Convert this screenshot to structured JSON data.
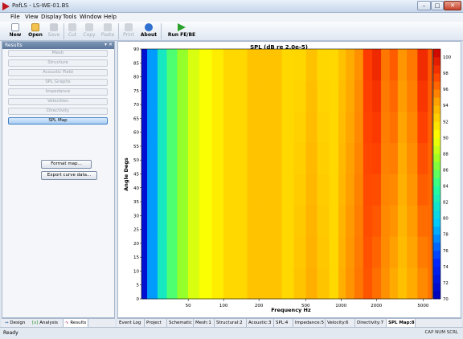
{
  "window": {
    "title": "PafLS - LS-WE-01.BS"
  },
  "menu": [
    "File",
    "View",
    "Display",
    "Tools",
    "Window",
    "Help"
  ],
  "toolbar": [
    {
      "label": "New",
      "icon": "new-file-icon",
      "enabled": true
    },
    {
      "label": "Open",
      "icon": "open-folder-icon",
      "enabled": true
    },
    {
      "label": "Save",
      "icon": "save-icon",
      "enabled": false
    },
    {
      "label": "Cut",
      "icon": "cut-icon",
      "enabled": false
    },
    {
      "label": "Copy",
      "icon": "copy-icon",
      "enabled": false
    },
    {
      "label": "Paste",
      "icon": "paste-icon",
      "enabled": false
    },
    {
      "label": "Print",
      "icon": "print-icon",
      "enabled": false
    },
    {
      "label": "About",
      "icon": "about-icon",
      "enabled": true
    },
    {
      "label": "Run FE/BE",
      "icon": "run-icon",
      "enabled": true
    }
  ],
  "panel": {
    "title": "Results",
    "controls": "▾ ✕",
    "nav": [
      "Mesh",
      "Structure",
      "Acoustic Field",
      "SPL Graphs",
      "Impedance",
      "Velocities",
      "Directivity",
      "SPL Map"
    ],
    "active": "SPL Map",
    "format_label": "Format map...",
    "export_label": "Export curve data..."
  },
  "left_tabs": [
    "Design",
    "Analysis",
    "Results"
  ],
  "bottom_tabs": [
    "Event Log",
    "Project",
    "Schematic",
    "Mesh:1",
    "Structural:2",
    "Acoustic:3",
    "SPL:4",
    "Impedance:5",
    "Velocity:6",
    "Directivity:7",
    "SPL Map:8"
  ],
  "status": {
    "ready": "Ready",
    "indicators": "CAP  NUM  SCRL"
  },
  "chart_data": {
    "type": "heatmap",
    "title": "SPL (dB re 2.0e-5)",
    "xlabel": "Frequency Hz",
    "ylabel": "Angle Degs",
    "x_scale": "log",
    "xlim": [
      20,
      6000
    ],
    "ylim": [
      0,
      90
    ],
    "x_ticks": [
      50,
      100,
      200,
      500,
      1000,
      2000,
      5000
    ],
    "y_ticks": [
      0,
      5,
      10,
      15,
      20,
      25,
      30,
      35,
      40,
      45,
      50,
      55,
      60,
      65,
      70,
      75,
      80,
      85,
      90
    ],
    "colorbar_range": [
      70,
      101
    ],
    "colorbar_ticks": [
      70,
      72,
      74,
      76,
      78,
      80,
      82,
      84,
      86,
      88,
      90,
      92,
      94,
      96,
      98,
      100
    ],
    "spl_by_frequency": {
      "freq": [
        20,
        25,
        30,
        36,
        45,
        55,
        70,
        90,
        110,
        140,
        180,
        220,
        280,
        350,
        450,
        560,
        700,
        900,
        1000,
        1200,
        1400,
        1700,
        2000,
        2400,
        2800,
        3300,
        4000,
        5000,
        6000
      ],
      "spl_on_axis": [
        72,
        78,
        82,
        85,
        87,
        89,
        90,
        91,
        92,
        92,
        93,
        93,
        93,
        92,
        93,
        94,
        93,
        92,
        94,
        95,
        96,
        97,
        96,
        95,
        94,
        93,
        94,
        95,
        96
      ],
      "spl_off_axis": [
        72,
        78,
        82,
        85,
        87,
        89,
        90,
        91,
        92,
        92,
        93,
        93,
        93,
        92,
        92,
        93,
        92,
        92,
        93,
        94,
        95,
        98,
        99,
        96,
        97,
        95,
        96,
        99,
        97
      ]
    }
  }
}
